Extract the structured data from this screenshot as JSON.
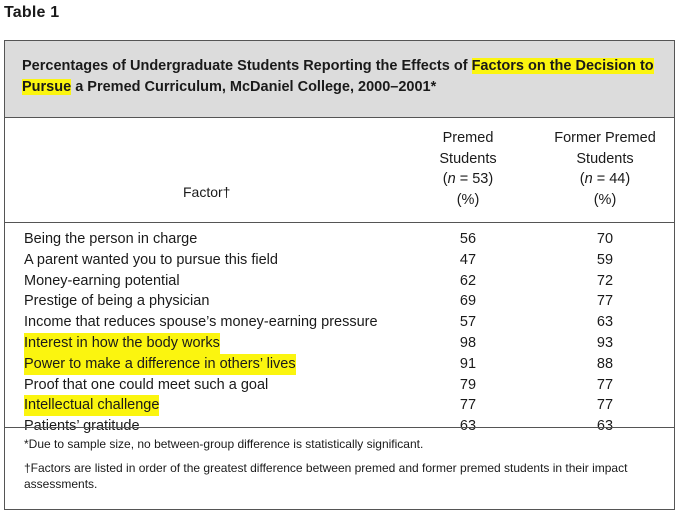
{
  "table_label": "Table 1",
  "caption": {
    "part1": "Percentages of Undergraduate Students Reporting the Effects of ",
    "highlight1": "Factors on the Decision to",
    "break_space": " ",
    "highlight2": "Pursue",
    "part2": " a Premed Curriculum, McDaniel College, 2000–2001*"
  },
  "header": {
    "factor": "Factor†",
    "col1": {
      "line1": "Premed",
      "line2": "Students",
      "line3": "(n = 53)",
      "line4": "(%)"
    },
    "col2": {
      "line1": "Former Premed",
      "line2": "Students",
      "line3": "(n = 44)",
      "line4": "(%)"
    }
  },
  "rows": [
    {
      "factor": "Being the person in charge",
      "premed": "56",
      "former": "70",
      "highlight": false
    },
    {
      "factor": "A parent wanted you to pursue this field",
      "premed": "47",
      "former": "59",
      "highlight": false
    },
    {
      "factor": "Money-earning potential",
      "premed": "62",
      "former": "72",
      "highlight": false
    },
    {
      "factor": "Prestige of being a physician",
      "premed": "69",
      "former": "77",
      "highlight": false
    },
    {
      "factor": "Income that reduces spouse’s money-earning pressure",
      "premed": "57",
      "former": "63",
      "highlight": false
    },
    {
      "factor": "Interest in how the body works",
      "premed": "98",
      "former": "93",
      "highlight": true
    },
    {
      "factor": "Power to make a difference in others’ lives",
      "premed": "91",
      "former": "88",
      "highlight": true
    },
    {
      "factor": "Proof that one could meet such a goal",
      "premed": "79",
      "former": "77",
      "highlight": false
    },
    {
      "factor": "Intellectual challenge",
      "premed": "77",
      "former": "77",
      "highlight": true
    },
    {
      "factor": "Patients’ gratitude",
      "premed": "63",
      "former": "63",
      "highlight": false
    }
  ],
  "footnotes": {
    "star": "*Due to sample size, no between-group difference is statistically significant.",
    "dagger": "†Factors are listed in order of the greatest difference between premed and former premed students in their impact assessments."
  },
  "colors": {
    "highlight": "#fbf50f",
    "caption_bg": "#dcdcdc"
  }
}
